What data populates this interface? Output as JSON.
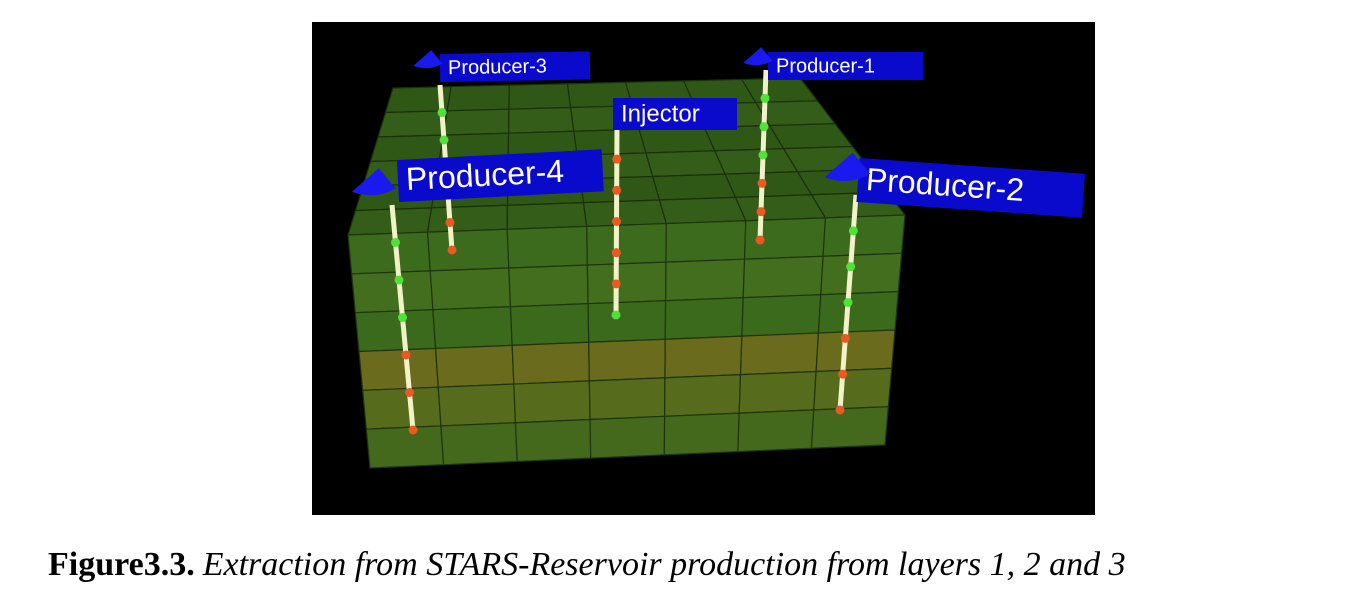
{
  "figure": {
    "wells": [
      {
        "label": "Producer-3"
      },
      {
        "label": "Producer-1"
      },
      {
        "label": "Injector"
      },
      {
        "label": "Producer-4"
      },
      {
        "label": "Producer-2"
      }
    ]
  },
  "caption": {
    "label": "Figure3.3.",
    "text": "Extraction from STARS-Reservoir production from layers 1, 2 and 3"
  }
}
